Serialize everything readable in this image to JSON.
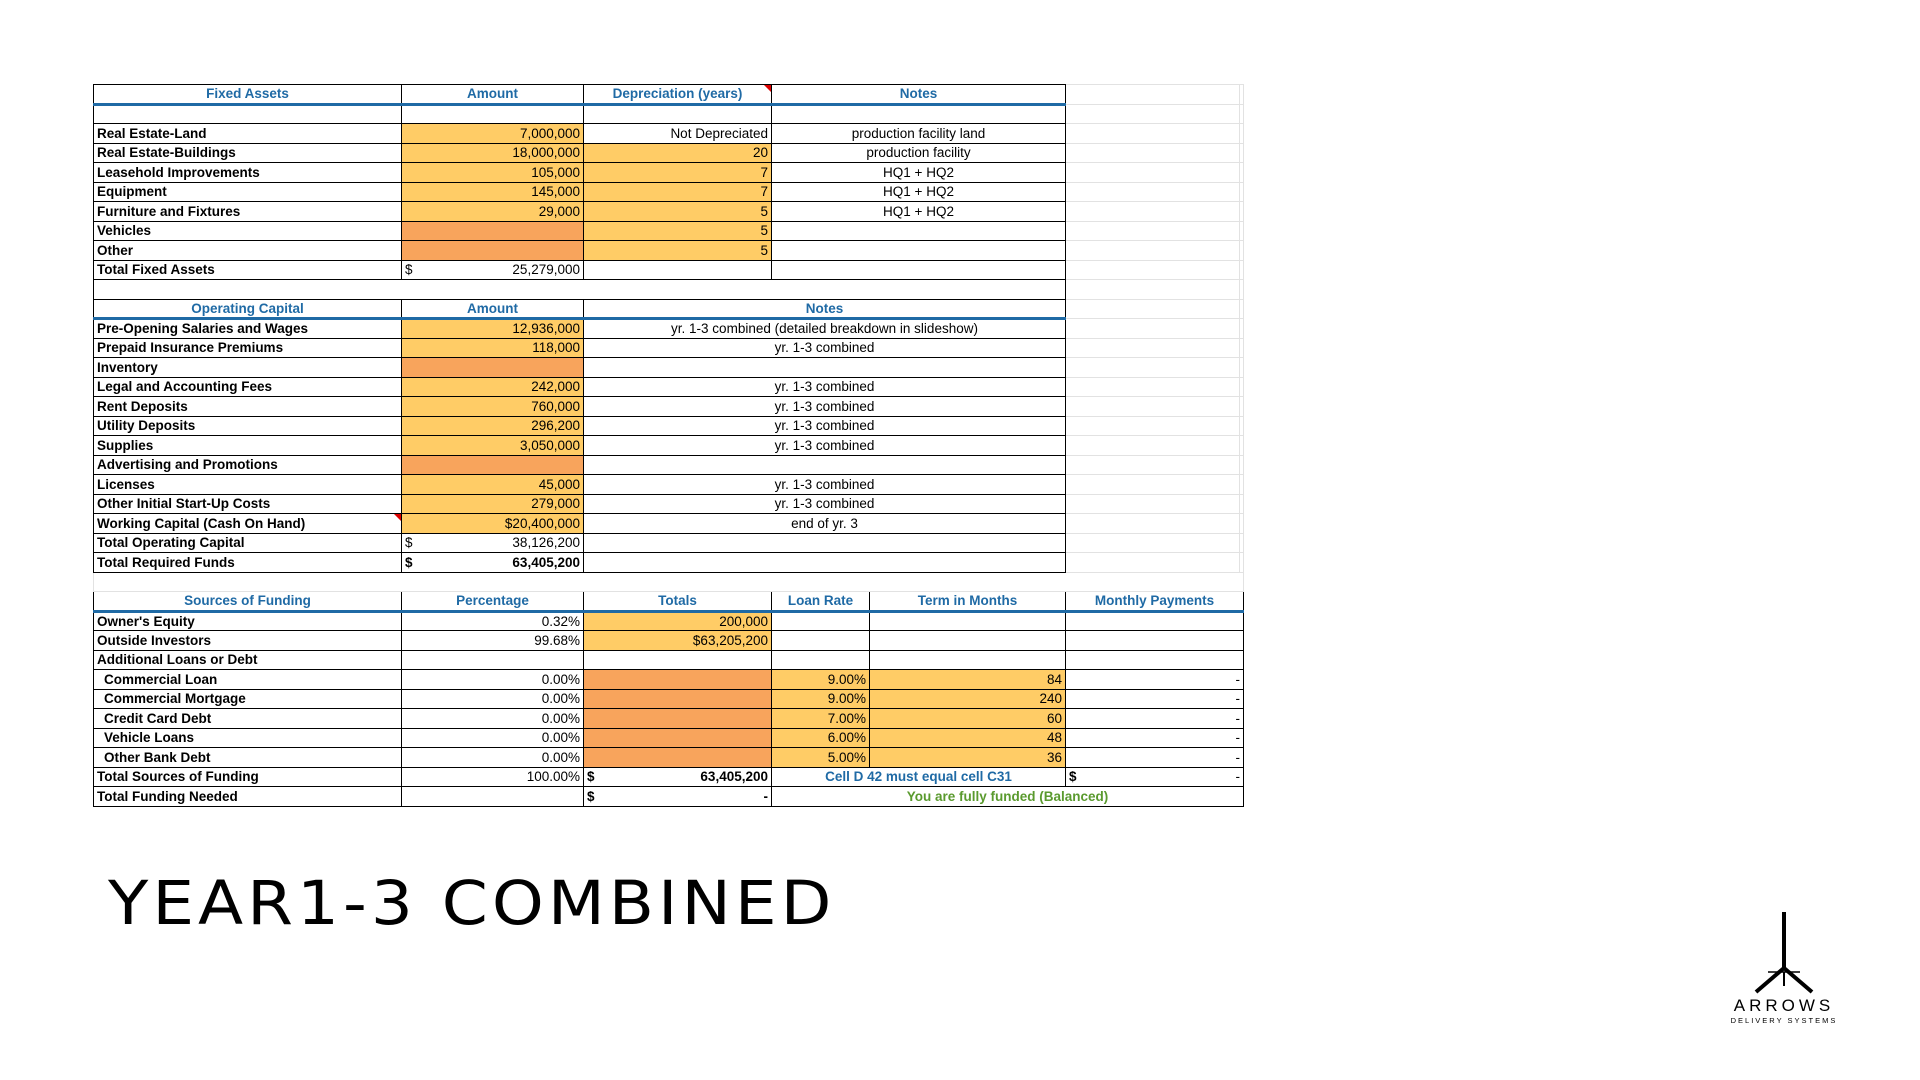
{
  "fixed_assets": {
    "headers": [
      "Fixed Assets",
      "Amount",
      "Depreciation (years)",
      "Notes"
    ],
    "rows": [
      {
        "label": "Real Estate-Land",
        "amount": "7,000,000",
        "dep": "Not Depreciated",
        "note": "production facility land"
      },
      {
        "label": "Real Estate-Buildings",
        "amount": "18,000,000",
        "dep": "20",
        "note": "production facility"
      },
      {
        "label": "Leasehold Improvements",
        "amount": "105,000",
        "dep": "7",
        "note": "HQ1 + HQ2"
      },
      {
        "label": "Equipment",
        "amount": "145,000",
        "dep": "7",
        "note": "HQ1 + HQ2"
      },
      {
        "label": "Furniture and Fixtures",
        "amount": "29,000",
        "dep": "5",
        "note": "HQ1 + HQ2"
      },
      {
        "label": "Vehicles",
        "amount": "",
        "dep": "5",
        "note": ""
      },
      {
        "label": "Other",
        "amount": "",
        "dep": "5",
        "note": ""
      }
    ],
    "total": {
      "label": "Total Fixed Assets",
      "currency": "$",
      "amount": "25,279,000"
    }
  },
  "operating_capital": {
    "headers": [
      "Operating Capital",
      "Amount",
      "Notes"
    ],
    "rows": [
      {
        "label": "Pre-Opening Salaries and Wages",
        "amount": "12,936,000",
        "note": "yr. 1-3 combined (detailed breakdown in slideshow)"
      },
      {
        "label": "Prepaid Insurance Premiums",
        "amount": "118,000",
        "note": "yr. 1-3 combined"
      },
      {
        "label": "Inventory",
        "amount": "",
        "note": ""
      },
      {
        "label": "Legal and Accounting Fees",
        "amount": "242,000",
        "note": "yr. 1-3 combined"
      },
      {
        "label": "Rent Deposits",
        "amount": "760,000",
        "note": "yr. 1-3 combined"
      },
      {
        "label": "Utility Deposits",
        "amount": "296,200",
        "note": "yr. 1-3 combined"
      },
      {
        "label": "Supplies",
        "amount": "3,050,000",
        "note": "yr. 1-3 combined"
      },
      {
        "label": "Advertising and Promotions",
        "amount": "",
        "note": ""
      },
      {
        "label": "Licenses",
        "amount": "45,000",
        "note": "yr. 1-3 combined"
      },
      {
        "label": "Other Initial Start-Up Costs",
        "amount": "279,000",
        "note": "yr. 1-3 combined"
      },
      {
        "label": "Working Capital (Cash On Hand)",
        "amount": "$20,400,000",
        "note": "end of yr. 3"
      }
    ],
    "total_operating": {
      "label": "Total Operating Capital",
      "currency": "$",
      "amount": "38,126,200"
    },
    "total_required": {
      "label": "Total Required Funds",
      "currency": "$",
      "amount": "63,405,200"
    }
  },
  "funding": {
    "headers": [
      "Sources of Funding",
      "Percentage",
      "Totals",
      "Loan Rate",
      "Term in Months",
      "Monthly Payments"
    ],
    "owners_equity": {
      "label": "Owner's Equity",
      "pct": "0.32%",
      "total": "200,000"
    },
    "outside_investors": {
      "label": "Outside Investors",
      "pct": "99.68%",
      "total": "$63,205,200"
    },
    "additional_label": "Additional Loans or Debt",
    "loans": [
      {
        "label": "Commercial Loan",
        "pct": "0.00%",
        "rate": "9.00%",
        "term": "84",
        "payment": "-"
      },
      {
        "label": "Commercial Mortgage",
        "pct": "0.00%",
        "rate": "9.00%",
        "term": "240",
        "payment": "-"
      },
      {
        "label": "Credit Card Debt",
        "pct": "0.00%",
        "rate": "7.00%",
        "term": "60",
        "payment": "-"
      },
      {
        "label": "Vehicle Loans",
        "pct": "0.00%",
        "rate": "6.00%",
        "term": "48",
        "payment": "-"
      },
      {
        "label": "Other Bank Debt",
        "pct": "0.00%",
        "rate": "5.00%",
        "term": "36",
        "payment": "-"
      }
    ],
    "total_sources": {
      "label": "Total Sources of Funding",
      "pct": "100.00%",
      "currency": "$",
      "total": "63,405,200",
      "check_note": "Cell D 42 must equal cell C31",
      "pay_currency": "$",
      "payment": "-"
    },
    "total_needed": {
      "label": "Total Funding Needed",
      "currency": "$",
      "total": "-",
      "status": "You are fully funded (Balanced)"
    }
  },
  "slide_title": "YEAR1-3 COMBINED",
  "logo": {
    "name": "ARROWS",
    "sub": "DELIVERY SYSTEMS",
    "icon": "arrows-tripod-logo-icon"
  },
  "colors": {
    "header_blue": "#1f6aa5",
    "input_yellow": "#ffcc66",
    "input_orange": "#f8a45c",
    "status_green": "#5a9a2e"
  }
}
